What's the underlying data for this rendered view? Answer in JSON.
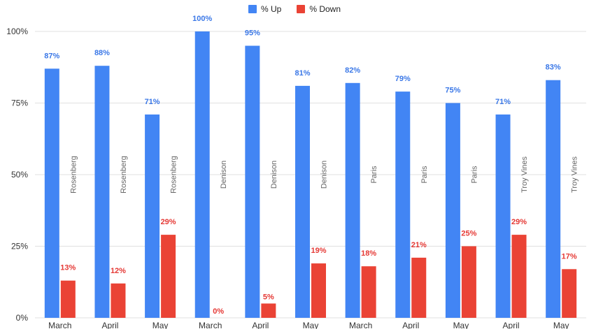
{
  "chart_data": {
    "type": "bar",
    "legend_position": "top-center",
    "grid": true,
    "ylim": [
      0,
      100
    ],
    "y_ticks": [
      "0%",
      "25%",
      "50%",
      "75%",
      "100%"
    ],
    "y_tick_values": [
      0,
      25,
      50,
      75,
      100
    ],
    "categories": [
      "March",
      "April",
      "May",
      "March",
      "April",
      "May",
      "March",
      "April",
      "May",
      "April",
      "May"
    ],
    "group_labels": [
      "Rosenberg",
      "Rosenberg",
      "Rosenberg",
      "Denison",
      "Denison",
      "Denison",
      "Paris",
      "Paris",
      "Paris",
      "Troy Vines",
      "Troy Vines"
    ],
    "series": [
      {
        "name": "% Up",
        "color": "#4285f4",
        "label_color": "#3b78e7",
        "values": [
          87,
          88,
          71,
          100,
          95,
          81,
          82,
          79,
          75,
          71,
          83
        ],
        "labels": [
          "87%",
          "88%",
          "71%",
          "100%",
          "95%",
          "81%",
          "82%",
          "79%",
          "75%",
          "71%",
          "83%"
        ]
      },
      {
        "name": "% Down",
        "color": "#ea4335",
        "label_color": "#e53935",
        "values": [
          13,
          12,
          29,
          0,
          5,
          19,
          18,
          21,
          25,
          29,
          17
        ],
        "labels": [
          "13%",
          "12%",
          "29%",
          "0%",
          "5%",
          "19%",
          "18%",
          "21%",
          "25%",
          "29%",
          "17%"
        ]
      }
    ],
    "colors": {
      "grid": "#e0e0e0",
      "axis_text": "#333333",
      "vertical_label": "#666666"
    }
  }
}
